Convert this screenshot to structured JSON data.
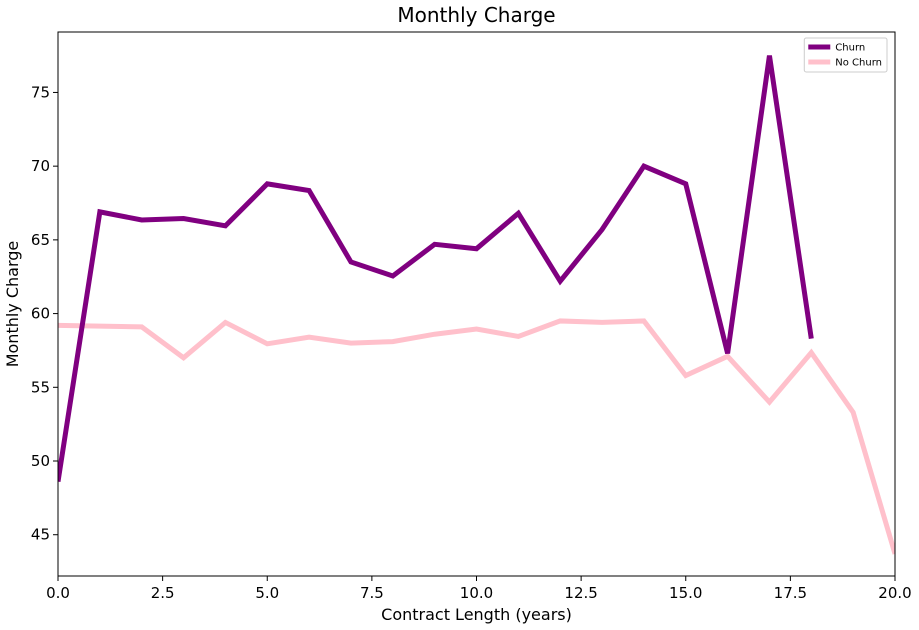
{
  "chart_data": {
    "type": "line",
    "title": "Monthly Charge",
    "xlabel": "Contract Length (years)",
    "ylabel": "Monthly Charge",
    "xlim": [
      0,
      20
    ],
    "ylim": [
      42.2,
      79.1
    ],
    "xticks": [
      "0.0",
      "2.5",
      "5.0",
      "7.5",
      "10.0",
      "12.5",
      "15.0",
      "17.5",
      "20.0"
    ],
    "yticks": [
      "45",
      "50",
      "55",
      "60",
      "65",
      "70",
      "75"
    ],
    "grid": false,
    "legend_position": "top-right",
    "series": [
      {
        "name": "Churn",
        "color": "#800080",
        "x": [
          0,
          1,
          2,
          3,
          4,
          5,
          6,
          7,
          8,
          9,
          10,
          11,
          12,
          13,
          14,
          15,
          16,
          17,
          18
        ],
        "y": [
          48.6,
          66.9,
          66.35,
          66.45,
          65.95,
          68.8,
          68.35,
          63.5,
          62.55,
          64.7,
          64.4,
          66.8,
          62.2,
          65.7,
          70.0,
          68.8,
          57.3,
          77.5,
          58.3
        ]
      },
      {
        "name": "No Churn",
        "color": "#ffc0cb",
        "x": [
          0,
          1,
          2,
          3,
          4,
          5,
          6,
          7,
          8,
          9,
          10,
          11,
          12,
          13,
          14,
          15,
          16,
          17,
          18,
          19,
          20
        ],
        "y": [
          59.2,
          59.15,
          59.1,
          57.0,
          59.4,
          57.95,
          58.4,
          58.0,
          58.1,
          58.6,
          58.95,
          58.45,
          59.5,
          59.4,
          59.5,
          55.8,
          57.1,
          54.0,
          57.35,
          53.3,
          43.7
        ]
      }
    ]
  }
}
